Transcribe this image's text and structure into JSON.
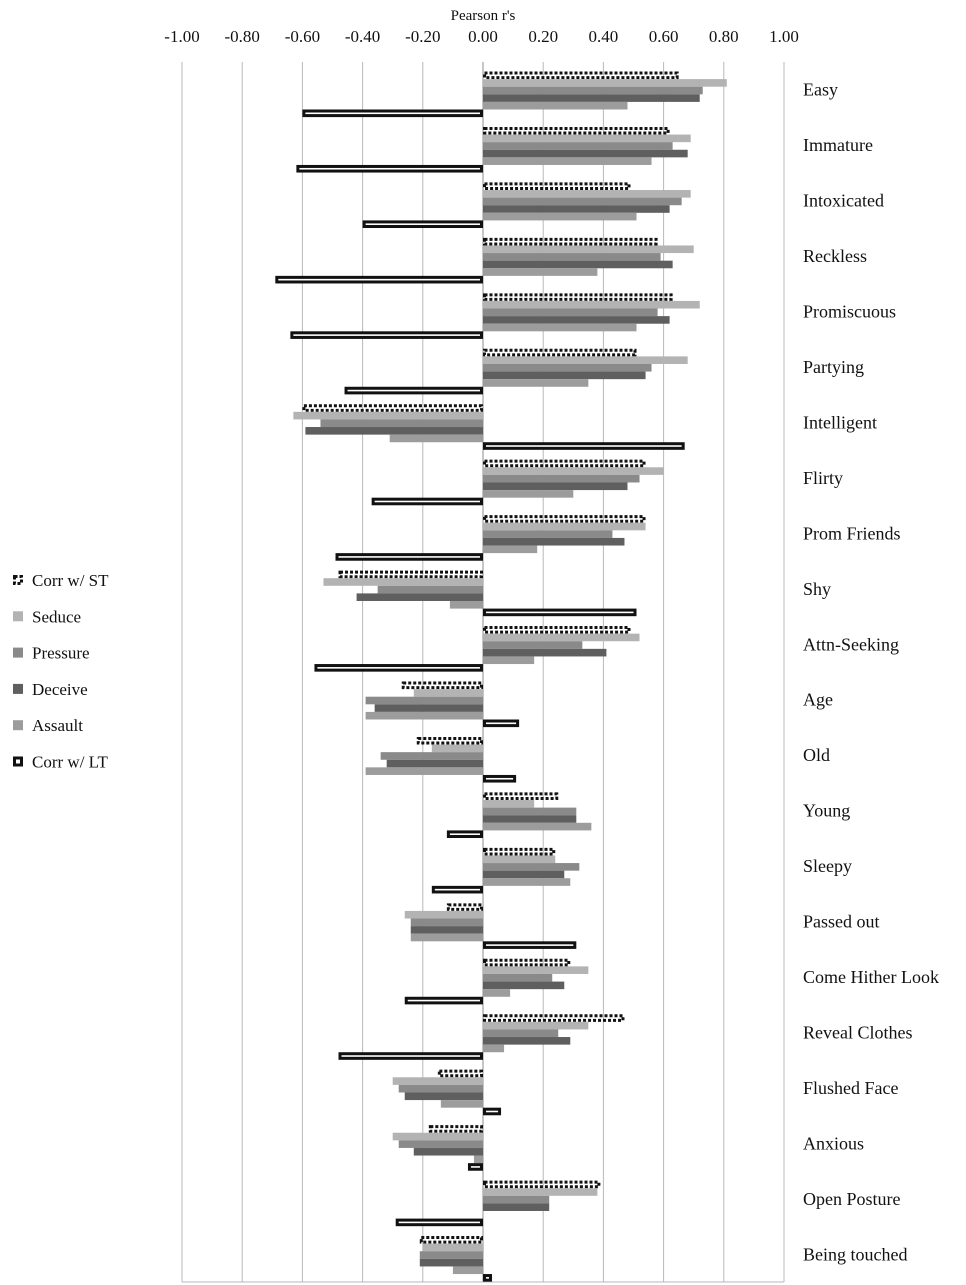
{
  "chart_data": {
    "type": "bar",
    "orientation": "horizontal",
    "title": "",
    "xlabel": "Pearson r's",
    "ylabel": "",
    "xlim": [
      -1.0,
      1.0
    ],
    "x_ticks": [
      "-1.00",
      "-0.80",
      "-0.60",
      "-0.40",
      "-0.20",
      "0.00",
      "0.20",
      "0.40",
      "0.60",
      "0.80",
      "1.00"
    ],
    "x_tick_values": [
      -1.0,
      -0.8,
      -0.6,
      -0.4,
      -0.2,
      0.0,
      0.2,
      0.4,
      0.6,
      0.8,
      1.0
    ],
    "grid": "vertical",
    "legend_position": "left",
    "categories": [
      "Easy",
      "Immature",
      "Intoxicated",
      "Reckless",
      "Promiscuous",
      "Partying",
      "Intelligent",
      "Flirty",
      "Prom Friends",
      "Shy",
      "Attn-Seeking",
      "Age",
      "Old",
      "Young",
      "Sleepy",
      "Passed out",
      "Come Hither Look",
      "Reveal Clothes",
      "Flushed Face",
      "Anxious",
      "Open Posture",
      "Being touched"
    ],
    "series": [
      {
        "name": "Corr w/ ST",
        "style": "dotted-outline",
        "color": "#111111",
        "values": [
          0.65,
          0.62,
          0.49,
          0.58,
          0.63,
          0.51,
          -0.6,
          0.54,
          0.54,
          -0.48,
          0.49,
          -0.27,
          -0.22,
          0.25,
          0.24,
          -0.12,
          0.29,
          0.47,
          -0.15,
          -0.18,
          0.39,
          -0.21
        ]
      },
      {
        "name": "Seduce",
        "style": "fill",
        "color": "#b3b3b3",
        "values": [
          0.81,
          0.69,
          0.69,
          0.7,
          0.72,
          0.68,
          -0.63,
          0.6,
          0.54,
          -0.53,
          0.52,
          -0.23,
          -0.17,
          0.17,
          0.24,
          -0.26,
          0.35,
          0.35,
          -0.3,
          -0.3,
          0.38,
          -0.2
        ]
      },
      {
        "name": "Pressure",
        "style": "fill",
        "color": "#8a8a8a",
        "values": [
          0.73,
          0.63,
          0.66,
          0.59,
          0.58,
          0.56,
          -0.54,
          0.52,
          0.43,
          -0.35,
          0.33,
          -0.39,
          -0.34,
          0.31,
          0.32,
          -0.24,
          0.23,
          0.25,
          -0.28,
          -0.28,
          0.22,
          -0.21
        ]
      },
      {
        "name": "Deceive",
        "style": "fill",
        "color": "#5f5f5f",
        "values": [
          0.72,
          0.68,
          0.62,
          0.63,
          0.62,
          0.54,
          -0.59,
          0.48,
          0.47,
          -0.42,
          0.41,
          -0.36,
          -0.32,
          0.31,
          0.27,
          -0.24,
          0.27,
          0.29,
          -0.26,
          -0.23,
          0.22,
          -0.21
        ]
      },
      {
        "name": "Assault",
        "style": "fill",
        "color": "#9c9c9c",
        "values": [
          0.48,
          0.56,
          0.51,
          0.38,
          0.51,
          0.35,
          -0.31,
          0.3,
          0.18,
          -0.11,
          0.17,
          -0.39,
          -0.39,
          0.36,
          0.29,
          -0.24,
          0.09,
          0.07,
          -0.14,
          -0.03,
          0.0,
          -0.1
        ]
      },
      {
        "name": "Corr w/ LT",
        "style": "outline",
        "color": "#111111",
        "values": [
          -0.6,
          -0.62,
          -0.4,
          -0.69,
          -0.64,
          -0.46,
          0.67,
          -0.37,
          -0.49,
          0.51,
          -0.56,
          0.12,
          0.11,
          -0.12,
          -0.17,
          0.31,
          -0.26,
          -0.48,
          0.06,
          -0.05,
          -0.29,
          0.03
        ]
      }
    ]
  }
}
